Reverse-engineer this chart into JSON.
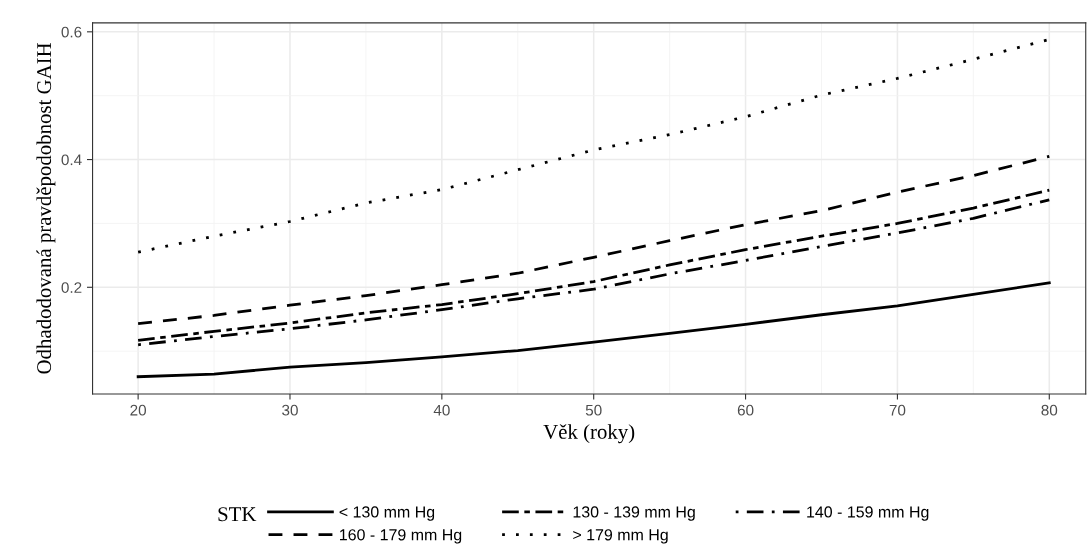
{
  "chart_data": {
    "type": "line",
    "xlabel": "Věk (roky)",
    "ylabel": "Odhadodovaná pravděpodobnost GAIH",
    "legend_title": "STK",
    "legend": "bottom",
    "grid": true,
    "marker": "none",
    "x": [
      20,
      25,
      30,
      35,
      40,
      45,
      50,
      55,
      60,
      65,
      70,
      75,
      80
    ],
    "xlim": [
      17,
      82.4
    ],
    "xticks": [
      20,
      30,
      40,
      50,
      60,
      70,
      80
    ],
    "ylim": [
      0.033,
      0.614
    ],
    "yticks": [
      0.2,
      0.4,
      0.6
    ],
    "series": [
      {
        "name": "< 130 mm Hg",
        "color": "#000000",
        "line_style": "solid",
        "values": [
          0.06,
          0.064,
          0.075,
          0.082,
          0.091,
          0.101,
          0.114,
          0.128,
          0.142,
          0.157,
          0.171,
          0.189,
          0.207
        ]
      },
      {
        "name": "130 - 139 mm Hg",
        "color": "#000000",
        "line_style": "longdash",
        "values": [
          0.117,
          0.131,
          0.144,
          0.16,
          0.173,
          0.19,
          0.209,
          0.235,
          0.259,
          0.28,
          0.3,
          0.324,
          0.352
        ]
      },
      {
        "name": "140 - 159 mm Hg",
        "color": "#000000",
        "line_style": "dashdot",
        "values": [
          0.11,
          0.123,
          0.135,
          0.149,
          0.165,
          0.182,
          0.197,
          0.221,
          0.242,
          0.264,
          0.285,
          0.308,
          0.337
        ]
      },
      {
        "name": "160 - 179 mm Hg",
        "color": "#000000",
        "line_style": "dashed",
        "values": [
          0.143,
          0.156,
          0.172,
          0.187,
          0.204,
          0.222,
          0.247,
          0.273,
          0.298,
          0.32,
          0.349,
          0.375,
          0.405
        ]
      },
      {
        "name": "> 179 mm Hg",
        "color": "#000000",
        "line_style": "dotted",
        "values": [
          0.255,
          0.28,
          0.303,
          0.332,
          0.353,
          0.384,
          0.415,
          0.439,
          0.467,
          0.501,
          0.527,
          0.557,
          0.588
        ]
      }
    ]
  }
}
